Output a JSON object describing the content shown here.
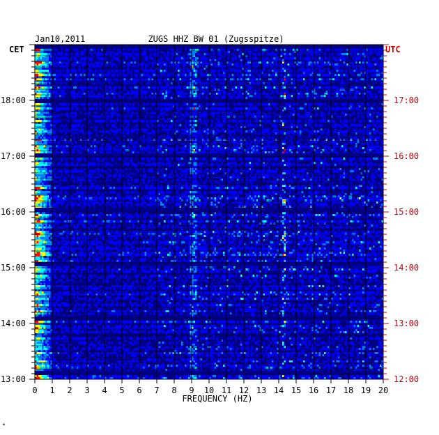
{
  "header": {
    "date": "Jan10,2011",
    "station": "ZUGS HHZ BW 01 (Zugsspitze)",
    "left_zone": "CET",
    "right_zone": "UTC"
  },
  "corner_mark": "*",
  "colors": {
    "left_axis": "#000000",
    "right_axis": "#d00000",
    "background": "#00008b"
  },
  "chart_data": {
    "type": "heatmap",
    "xlabel": "FREQUENCY (HZ)",
    "xlim": [
      0,
      20
    ],
    "x_ticks": [
      "0",
      "1",
      "2",
      "3",
      "4",
      "5",
      "6",
      "7",
      "8",
      "9",
      "10",
      "11",
      "12",
      "13",
      "14",
      "15",
      "16",
      "17",
      "18",
      "19",
      "20"
    ],
    "y_time_range": [
      "13:00",
      "19:00"
    ],
    "left_time_labels": [
      "18:00",
      "17:00",
      "16:00",
      "15:00",
      "14:00",
      "13:00"
    ],
    "right_time_labels": [
      "17:00",
      "16:00",
      "15:00",
      "14:00",
      "13:00",
      "12:00"
    ],
    "colormap": [
      "#00008b",
      "#0000ff",
      "#0080ff",
      "#00ffff",
      "#ffff00",
      "#ff0000"
    ],
    "features": [
      {
        "desc": "strong low-frequency energy",
        "freq_hz": [
          0,
          1
        ]
      },
      {
        "desc": "persistent narrow band",
        "freq_hz": 9.1
      },
      {
        "desc": "intermittent band",
        "freq_hz": 14.3
      }
    ]
  }
}
